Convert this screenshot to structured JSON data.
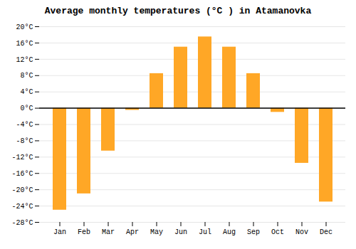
{
  "chart_data": {
    "type": "bar",
    "title": "Average monthly temperatures (°C ) in Atamanovka",
    "categories": [
      "Jan",
      "Feb",
      "Mar",
      "Apr",
      "May",
      "Jun",
      "Jul",
      "Aug",
      "Sep",
      "Oct",
      "Nov",
      "Dec"
    ],
    "values": [
      -25,
      -21,
      -10.5,
      -0.5,
      8.5,
      15,
      17.5,
      15,
      8.5,
      -1,
      -13.5,
      -23
    ],
    "color": "#FFA726",
    "ylim": [
      -28,
      20
    ],
    "yticks": [
      {
        "value": -28,
        "label": "-28°C"
      },
      {
        "value": -24,
        "label": "-24°C"
      },
      {
        "value": -20,
        "label": "-20°C"
      },
      {
        "value": -16,
        "label": "-16°C"
      },
      {
        "value": -12,
        "label": "-12°C"
      },
      {
        "value": -8,
        "label": "-8°C"
      },
      {
        "value": -4,
        "label": "-4°C"
      },
      {
        "value": 0,
        "label": "0°C"
      },
      {
        "value": 4,
        "label": "4°C"
      },
      {
        "value": 8,
        "label": "8°C"
      },
      {
        "value": 12,
        "label": "12°C"
      },
      {
        "value": 16,
        "label": "16°C"
      },
      {
        "value": 20,
        "label": "20°C"
      }
    ],
    "grid": true
  }
}
